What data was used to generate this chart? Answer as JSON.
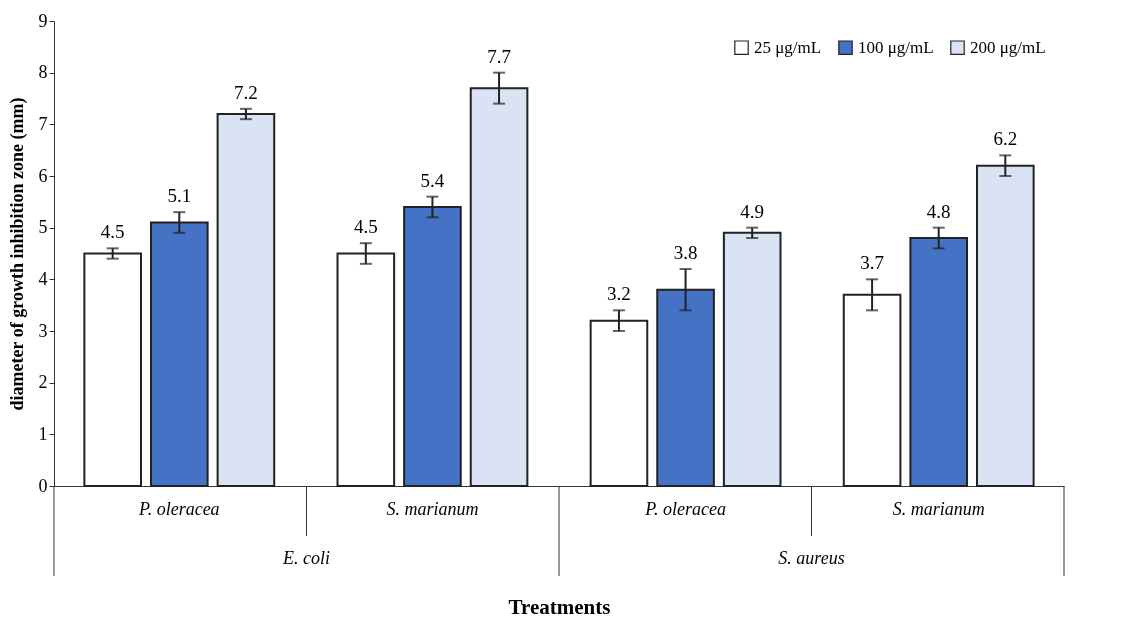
{
  "chart_data": {
    "type": "bar",
    "xlabel": "Treatments",
    "ylabel": "diameter of growth inhibition zone (mm)",
    "categories": [
      "P. oleracea",
      "S. marianum",
      "P. oleracea",
      "S. marianum"
    ],
    "annotations": [
      "E. coli",
      "S. aureus"
    ],
    "series": [
      {
        "name": "25 μg/mL",
        "color": "#ffffff",
        "values": [
          4.5,
          4.5,
          3.2,
          3.7
        ],
        "errors": [
          0.1,
          0.2,
          0.2,
          0.3
        ]
      },
      {
        "name": "100 μg/mL",
        "color": "#4472c4",
        "values": [
          5.1,
          5.4,
          3.8,
          4.8
        ],
        "errors": [
          0.2,
          0.2,
          0.4,
          0.2
        ]
      },
      {
        "name": "200 μg/mL",
        "color": "#dae3f3",
        "values": [
          7.2,
          7.7,
          4.9,
          6.2
        ],
        "errors": [
          0.1,
          0.3,
          0.1,
          0.2
        ]
      }
    ],
    "ylim": [
      0,
      9
    ],
    "yticks": [
      0,
      1,
      2,
      3,
      4,
      5,
      6,
      7,
      8,
      9
    ],
    "grid": false,
    "legend": "top right",
    "data_labels": true
  }
}
